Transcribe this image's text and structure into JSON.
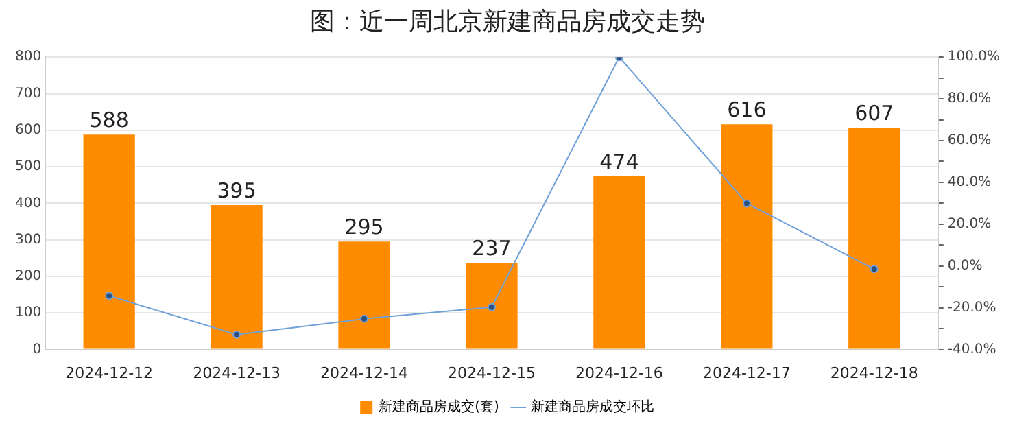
{
  "chart_data": {
    "type": "bar",
    "title": "图：近一周北京新建商品房成交走势",
    "categories": [
      "2024-12-12",
      "2024-12-13",
      "2024-12-14",
      "2024-12-15",
      "2024-12-16",
      "2024-12-17",
      "2024-12-18"
    ],
    "series": [
      {
        "name": "新建商品房成交(套)",
        "color": "#ff8c00",
        "values": [
          588,
          395,
          295,
          237,
          474,
          616,
          607
        ],
        "data_labels": true
      },
      {
        "name": "新建商品房成交环比",
        "type": "line",
        "axis": "y2",
        "color": "#6fa0d8",
        "marker": "circle",
        "values": [
          -14.3,
          -32.8,
          -25.3,
          -19.7,
          100,
          30,
          -1.5
        ]
      }
    ],
    "ylim": [
      0,
      800
    ],
    "yticks": [
      0,
      100,
      200,
      300,
      400,
      500,
      600,
      700,
      800
    ],
    "y2lim": [
      -40,
      100
    ],
    "y2ticks": [
      {
        "value": -40,
        "label": "-40.0%"
      },
      {
        "value": -30,
        "label": null
      },
      {
        "value": -20,
        "label": "-20.0%"
      },
      {
        "value": -10,
        "label": null
      },
      {
        "value": 0,
        "label": "0.0%"
      },
      {
        "value": 10,
        "label": null
      },
      {
        "value": 20,
        "label": "20.0%"
      },
      {
        "value": 30,
        "label": null
      },
      {
        "value": 40,
        "label": "40.0%"
      },
      {
        "value": 50,
        "label": null
      },
      {
        "value": 60,
        "label": "60.0%"
      },
      {
        "value": 70,
        "label": null
      },
      {
        "value": 80,
        "label": "80.0%"
      },
      {
        "value": 90,
        "label": null
      },
      {
        "value": 100,
        "label": "100.0%"
      }
    ],
    "grid": "y",
    "legend": "bottom"
  }
}
